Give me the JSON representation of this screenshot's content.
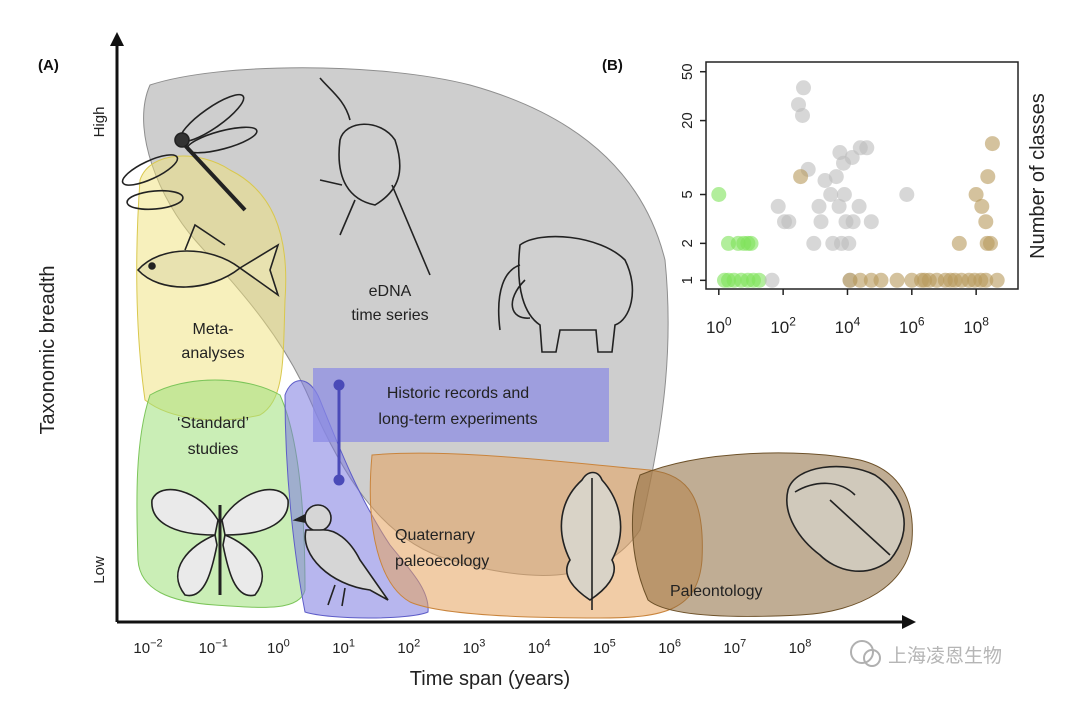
{
  "panel_a": {
    "label": "(A)",
    "y_axis": {
      "title": "Taxonomic breadth",
      "high": "High",
      "low": "Low"
    },
    "x_axis": {
      "title": "Time span (years)",
      "ticks": [
        {
          "base": "10",
          "exp": "−2"
        },
        {
          "base": "10",
          "exp": "−1"
        },
        {
          "base": "10",
          "exp": "0"
        },
        {
          "base": "10",
          "exp": "1"
        },
        {
          "base": "10",
          "exp": "2"
        },
        {
          "base": "10",
          "exp": "3"
        },
        {
          "base": "10",
          "exp": "4"
        },
        {
          "base": "10",
          "exp": "5"
        },
        {
          "base": "10",
          "exp": "6"
        },
        {
          "base": "10",
          "exp": "7"
        },
        {
          "base": "10",
          "exp": "8"
        }
      ]
    },
    "regions": {
      "edna": {
        "line1": "eDNA",
        "line2": "time series",
        "color": "#a6a6a6"
      },
      "meta": {
        "line1": "Meta-",
        "line2": "analyses",
        "color": "#f0e27a"
      },
      "standard": {
        "line1": "‘Standard’",
        "line2": "studies",
        "color": "#9fe07a"
      },
      "historic_bird": {
        "color": "#7b7ae0"
      },
      "historic": {
        "line1": "Historic records and",
        "line2": "long-term experiments",
        "color": "#8a8ae6"
      },
      "quaternary": {
        "line1": "Quaternary",
        "line2": "paleoecology",
        "color": "#e6a35c"
      },
      "paleontology": {
        "line1": "Paleontology",
        "color": "#8c6a3c"
      }
    },
    "watermark": "上海凌恩生物"
  },
  "panel_b": {
    "label": "(B)",
    "ylabel": "Number of classes"
  },
  "chart_data": {
    "type": "scatter",
    "title": "",
    "xlabel": "",
    "ylabel": "Number of classes",
    "x_scale": "log",
    "y_scale": "log",
    "xlim": [
      0.4,
      2000000000
    ],
    "ylim": [
      0.85,
      60
    ],
    "x_ticks": [
      1,
      100,
      10000,
      1000000,
      100000000
    ],
    "x_tick_labels": [
      {
        "base": "10",
        "exp": "0"
      },
      {
        "base": "10",
        "exp": "2"
      },
      {
        "base": "10",
        "exp": "4"
      },
      {
        "base": "10",
        "exp": "6"
      },
      {
        "base": "10",
        "exp": "8"
      }
    ],
    "y_ticks": [
      1,
      2,
      5,
      20,
      50
    ],
    "y_tick_labels": [
      "1",
      "2",
      "5",
      "20",
      "50"
    ],
    "grid": false,
    "series": [
      {
        "color": "#7ee35a",
        "points": [
          [
            1,
            5
          ],
          [
            2,
            2
          ],
          [
            4,
            2
          ],
          [
            6,
            2
          ],
          [
            8,
            2
          ],
          [
            10,
            2
          ],
          [
            1.5,
            1
          ],
          [
            2,
            1
          ],
          [
            3,
            1
          ],
          [
            5,
            1
          ],
          [
            8,
            1
          ],
          [
            12,
            1
          ],
          [
            18,
            1
          ]
        ]
      },
      {
        "color": "#bdbdbd",
        "points": [
          [
            45,
            1
          ],
          [
            70,
            4
          ],
          [
            110,
            3
          ],
          [
            150,
            3
          ],
          [
            300,
            27
          ],
          [
            400,
            22
          ],
          [
            430,
            37
          ],
          [
            600,
            8
          ],
          [
            900,
            2
          ],
          [
            1300,
            4
          ],
          [
            1500,
            3
          ],
          [
            2000,
            6.5
          ],
          [
            3000,
            5
          ],
          [
            3500,
            2
          ],
          [
            4500,
            7
          ],
          [
            5500,
            4
          ],
          [
            5800,
            11
          ],
          [
            6500,
            2
          ],
          [
            7500,
            9
          ],
          [
            8000,
            5
          ],
          [
            9000,
            3
          ],
          [
            11000,
            2
          ],
          [
            14000,
            10
          ],
          [
            15000,
            3
          ],
          [
            23000,
            4
          ],
          [
            25000,
            12
          ],
          [
            40000,
            12
          ],
          [
            55000,
            3
          ],
          [
            12000,
            1
          ],
          [
            700000,
            5
          ]
        ]
      },
      {
        "color": "#b89a5c",
        "points": [
          [
            350,
            7
          ],
          [
            12000,
            1
          ],
          [
            25000,
            1
          ],
          [
            55000,
            1
          ],
          [
            110000,
            1
          ],
          [
            350000,
            1
          ],
          [
            1000000,
            1
          ],
          [
            2000000,
            1
          ],
          [
            2500000,
            1
          ],
          [
            3500000,
            1
          ],
          [
            6000000,
            1
          ],
          [
            11000000,
            1
          ],
          [
            16000000,
            1
          ],
          [
            22000000,
            1
          ],
          [
            35000000,
            1
          ],
          [
            60000000,
            1
          ],
          [
            90000000,
            1
          ],
          [
            140000000,
            1
          ],
          [
            200000000,
            1
          ],
          [
            450000000,
            1
          ],
          [
            30000000,
            2
          ],
          [
            100000000,
            5
          ],
          [
            150000000,
            4
          ],
          [
            200000000,
            3
          ],
          [
            220000000,
            2
          ],
          [
            280000000,
            2
          ],
          [
            230000000,
            7
          ],
          [
            320000000,
            13
          ]
        ]
      }
    ]
  }
}
